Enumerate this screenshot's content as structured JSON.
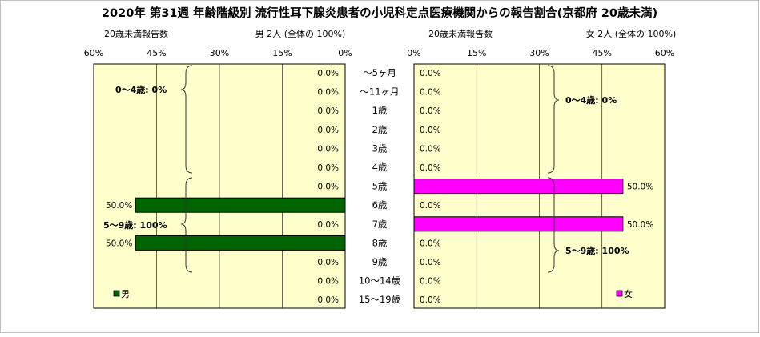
{
  "chart_data": {
    "type": "bar",
    "title": "2020年 第31週 年齢階級別 流行性耳下腺炎患者の小児科定点医療機関からの報告割合(京都府 20歳未満)",
    "categories": [
      "～5ヶ月",
      "～11ヶ月",
      "1歳",
      "2歳",
      "3歳",
      "4歳",
      "5歳",
      "6歳",
      "7歳",
      "8歳",
      "9歳",
      "10～14歳",
      "15～19歳"
    ],
    "xlim": [
      0,
      60
    ],
    "x_ticks": [
      "60%",
      "45%",
      "30%",
      "15%",
      "0%",
      "0%",
      "15%",
      "30%",
      "45%",
      "60%"
    ],
    "colors": {
      "male": "#006400",
      "female": "#ff00ff",
      "plot_bg": "#ffffcc"
    },
    "panels": [
      {
        "side": "male",
        "axis_caption": "20歳未満報告数",
        "header": "男 2人 (全体の 100%)",
        "legend": "男",
        "value_labels": [
          "0.0%",
          "0.0%",
          "0.0%",
          "0.0%",
          "0.0%",
          "0.0%",
          "0.0%",
          "50.0%",
          "0.0%",
          "50.0%",
          "0.0%",
          "0.0%",
          "0.0%"
        ],
        "values": [
          0,
          0,
          0,
          0,
          0,
          0,
          0,
          50,
          0,
          50,
          0,
          0,
          0
        ],
        "group_annotations": [
          "0～4歳: 0%",
          "5～9歳: 100%"
        ]
      },
      {
        "side": "female",
        "axis_caption": "20歳未満報告数",
        "header": "女 2人 (全体の 100%)",
        "legend": "女",
        "value_labels": [
          "0.0%",
          "0.0%",
          "0.0%",
          "0.0%",
          "0.0%",
          "0.0%",
          "50.0%",
          "0.0%",
          "50.0%",
          "0.0%",
          "0.0%",
          "0.0%",
          "0.0%"
        ],
        "values": [
          0,
          0,
          0,
          0,
          0,
          0,
          50,
          0,
          50,
          0,
          0,
          0,
          0
        ],
        "group_annotations": [
          "0～4歳: 0%",
          "5～9歳: 100%"
        ]
      }
    ]
  }
}
